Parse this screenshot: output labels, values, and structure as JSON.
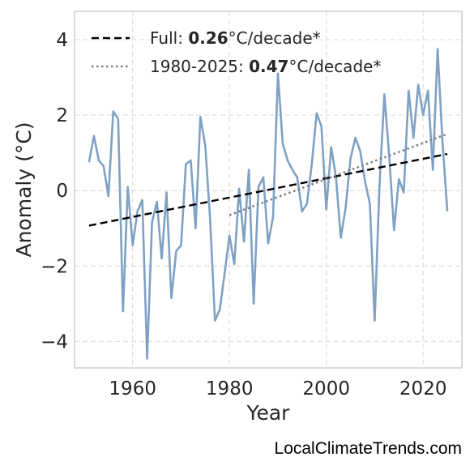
{
  "chart_data": {
    "type": "line",
    "xlabel": "Year",
    "ylabel": "Anomaly (°C)",
    "xlim": [
      1948,
      2028
    ],
    "ylim": [
      -4.7,
      4.75
    ],
    "xticks": [
      "1960",
      "1980",
      "2000",
      "2020"
    ],
    "yticks": [
      "4",
      "2",
      "0",
      "−2",
      "−4"
    ],
    "grid": true,
    "legend_placement": "top-left",
    "colors": {
      "series": "#7fa1c3",
      "full_trend": "#000000",
      "recent_trend": "#808080",
      "frame": "#cccccc",
      "grid": "#dddddd"
    },
    "x": [
      1951,
      1952,
      1953,
      1954,
      1955,
      1956,
      1957,
      1958,
      1959,
      1960,
      1961,
      1962,
      1963,
      1964,
      1965,
      1966,
      1967,
      1968,
      1969,
      1970,
      1971,
      1972,
      1973,
      1974,
      1975,
      1976,
      1977,
      1978,
      1979,
      1980,
      1981,
      1982,
      1983,
      1984,
      1985,
      1986,
      1987,
      1988,
      1989,
      1990,
      1991,
      1992,
      1993,
      1994,
      1995,
      1996,
      1997,
      1998,
      1999,
      2000,
      2001,
      2002,
      2003,
      2004,
      2005,
      2006,
      2007,
      2008,
      2009,
      2010,
      2011,
      2012,
      2013,
      2014,
      2015,
      2016,
      2017,
      2018,
      2019,
      2020,
      2021,
      2022,
      2023,
      2024,
      2025
    ],
    "series": [
      {
        "values": [
          0.75,
          1.45,
          0.8,
          0.65,
          -0.15,
          2.1,
          1.9,
          -3.2,
          0.1,
          -1.45,
          -0.55,
          -0.25,
          -4.45,
          -0.85,
          -0.3,
          -1.8,
          -0.05,
          -2.85,
          -1.6,
          -1.45,
          0.7,
          0.8,
          -1.0,
          1.95,
          1.2,
          -0.75,
          -3.45,
          -3.15,
          -2.2,
          -1.2,
          -1.95,
          0.05,
          -1.35,
          0.55,
          -3.0,
          0.1,
          0.35,
          -1.4,
          -0.7,
          3.1,
          1.25,
          0.8,
          0.55,
          0.35,
          -0.55,
          -0.35,
          0.7,
          2.05,
          1.7,
          -0.5,
          1.15,
          0.35,
          -1.25,
          -0.45,
          0.85,
          1.4,
          1.05,
          0.25,
          -0.35,
          -3.45,
          0.15,
          2.55,
          0.9,
          -1.05,
          0.3,
          -0.05,
          2.65,
          1.4,
          2.8,
          2.0,
          2.65,
          0.55,
          3.75,
          1.3,
          -0.55
        ]
      }
    ],
    "trends": [
      {
        "name": "Full",
        "slope": "0.26",
        "unit_suffix": "°C/decade*",
        "style": "dashed",
        "x": [
          1951,
          2025
        ],
        "y": [
          -0.93,
          0.97
        ]
      },
      {
        "name": "1980-2025",
        "slope": "0.47",
        "unit_suffix": "°C/decade*",
        "style": "dotted",
        "x": [
          1980,
          2025
        ],
        "y": [
          -0.65,
          1.5
        ]
      }
    ],
    "source": "LocalClimateTrends.com"
  }
}
